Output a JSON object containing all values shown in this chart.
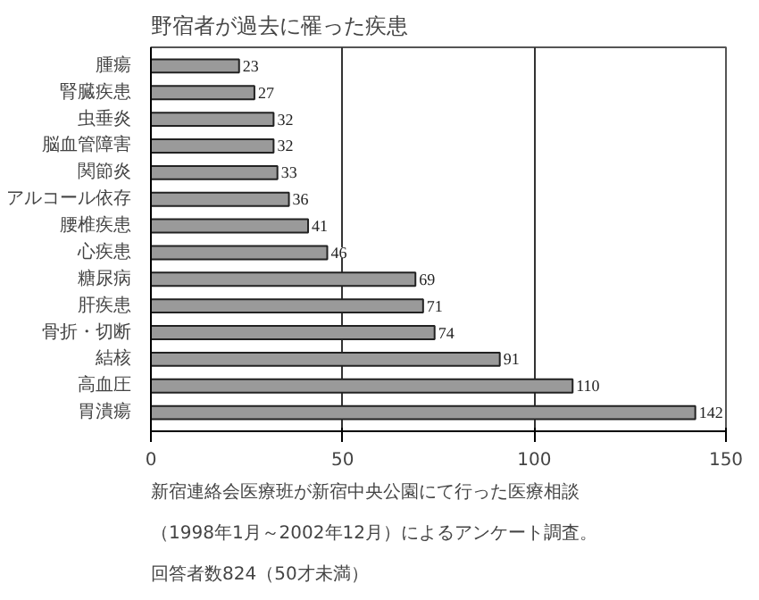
{
  "chart_data": {
    "type": "bar",
    "orientation": "horizontal",
    "title": "野宿者が過去に罹った疾患",
    "categories": [
      "腫瘍",
      "腎臓疾患",
      "虫垂炎",
      "脳血管障害",
      "関節炎",
      "アルコール依存",
      "腰椎疾患",
      "心疾患",
      "糖尿病",
      "肝疾患",
      "骨折・切断",
      "結核",
      "高血圧",
      "胃潰瘍"
    ],
    "values": [
      23,
      27,
      32,
      32,
      33,
      36,
      41,
      46,
      69,
      71,
      74,
      91,
      110,
      142
    ],
    "color": "#9a9a9a",
    "xlim": [
      0,
      150
    ],
    "xticks": [
      0,
      50,
      100,
      150
    ],
    "grid": "x",
    "data_labels": true,
    "annotations": [
      "新宿連絡会医療班が新宿中央公園にて行った医療相談",
      "（1998年1月～2002年12月）によるアンケート調査。",
      "回答者数824（50才未満）"
    ]
  }
}
